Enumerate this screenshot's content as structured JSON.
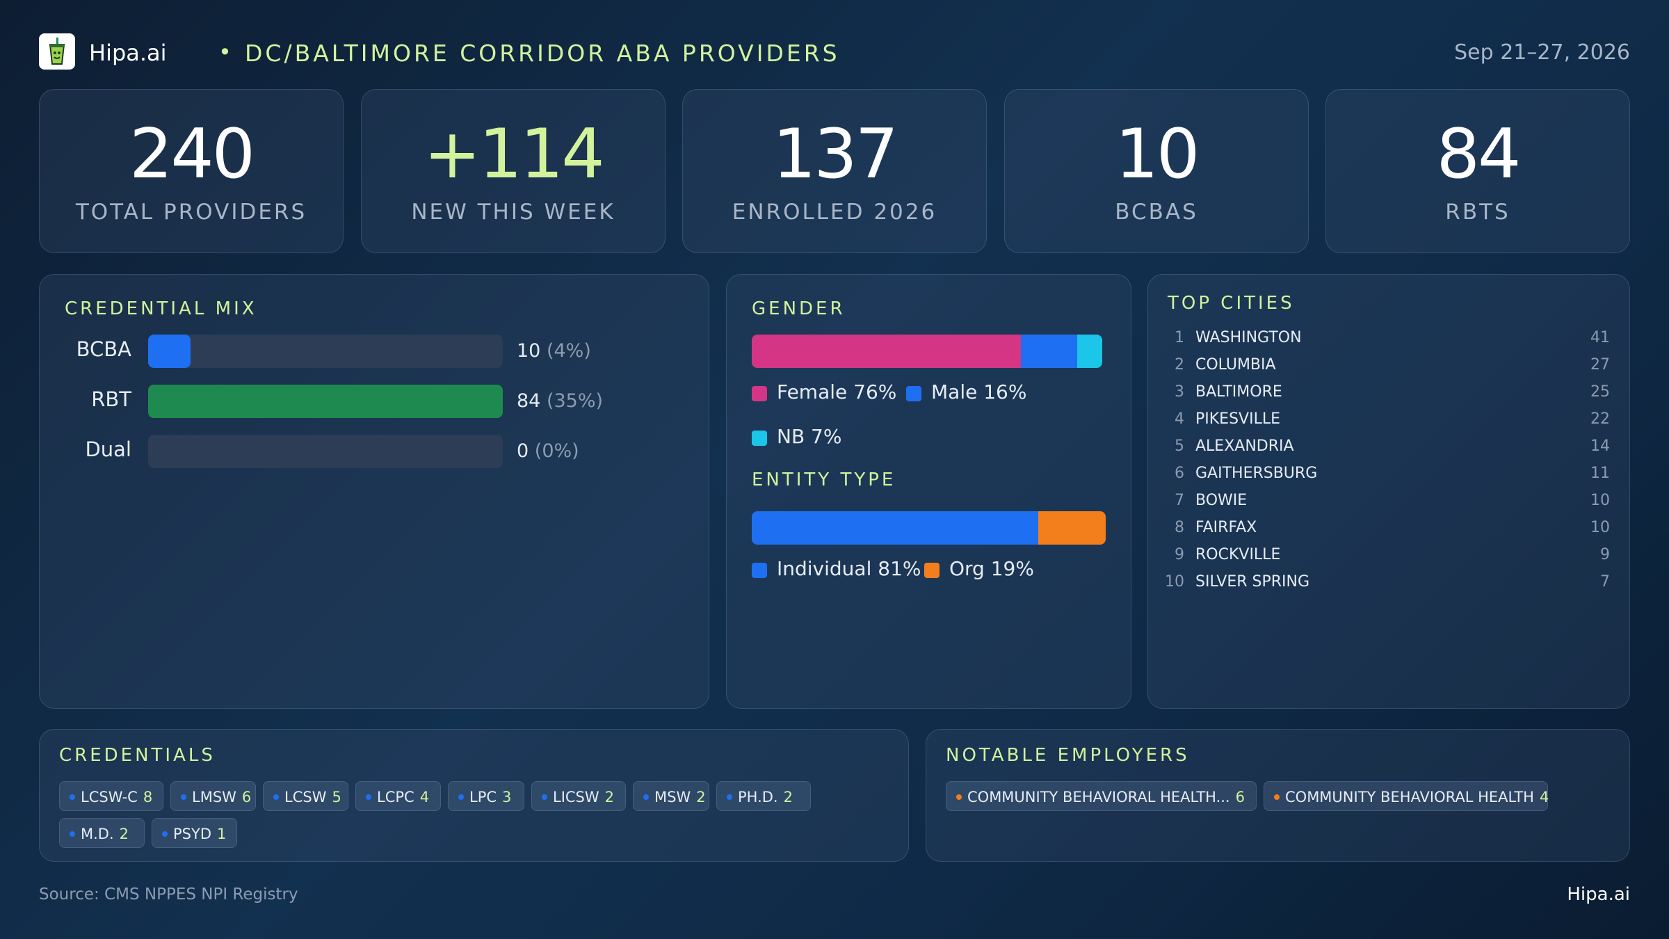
{
  "header": {
    "brand": "Hipa.ai",
    "separator": "•",
    "headline": "DC/BALTIMORE CORRIDOR ABA PROVIDERS",
    "date_range": "Sep 21–27, 2026",
    "logo_icon": "cup-icon"
  },
  "kpis": [
    {
      "value": "240",
      "label": "TOTAL PROVIDERS"
    },
    {
      "value": "+114",
      "label": "NEW THIS WEEK"
    },
    {
      "value": "137",
      "label": "ENROLLED 2026"
    },
    {
      "value": "10",
      "label": "BCBAS"
    },
    {
      "value": "84",
      "label": "RBTS"
    }
  ],
  "credential_mix": {
    "title": "CREDENTIAL MIX",
    "rows": [
      {
        "label": "BCBA",
        "count": "10",
        "pct": "(4%)",
        "fraction": 0.12,
        "color": "#1f6ff2"
      },
      {
        "label": "RBT",
        "count": "84",
        "pct": "(35%)",
        "fraction": 1.0,
        "color": "#1e8a4f"
      },
      {
        "label": "Dual",
        "count": "0",
        "pct": "(0%)",
        "fraction": 0.0,
        "color": "#1f6ff2"
      }
    ]
  },
  "gender": {
    "title": "GENDER",
    "segments": [
      {
        "label": "Female 76%",
        "share": 76,
        "color": "#d43585"
      },
      {
        "label": "Male 16%",
        "share": 16,
        "color": "#1f6ff2"
      },
      {
        "label": "NB 7%",
        "share": 7,
        "color": "#1bc6e8"
      }
    ]
  },
  "entity_type": {
    "title": "ENTITY TYPE",
    "segments": [
      {
        "label": "Individual 81%",
        "share": 81,
        "color": "#1f6ff2"
      },
      {
        "label": "Org 19%",
        "share": 19,
        "color": "#f27f1b"
      }
    ]
  },
  "top_cities": {
    "title": "TOP CITIES",
    "rows": [
      {
        "rank": "1",
        "name": "WASHINGTON",
        "count": "41"
      },
      {
        "rank": "2",
        "name": "COLUMBIA",
        "count": "27"
      },
      {
        "rank": "3",
        "name": "BALTIMORE",
        "count": "25"
      },
      {
        "rank": "4",
        "name": "PIKESVILLE",
        "count": "22"
      },
      {
        "rank": "5",
        "name": "ALEXANDRIA",
        "count": "14"
      },
      {
        "rank": "6",
        "name": "GAITHERSBURG",
        "count": "11"
      },
      {
        "rank": "7",
        "name": "BOWIE",
        "count": "10"
      },
      {
        "rank": "8",
        "name": "FAIRFAX",
        "count": "10"
      },
      {
        "rank": "9",
        "name": "ROCKVILLE",
        "count": "9"
      },
      {
        "rank": "10",
        "name": "SILVER SPRING",
        "count": "7"
      }
    ]
  },
  "credentials": {
    "title": "CREDENTIALS",
    "dot_color": "#1f6ff2",
    "chips": [
      {
        "label": "LCSW-C",
        "count": "8"
      },
      {
        "label": "LMSW",
        "count": "6"
      },
      {
        "label": "LCSW",
        "count": "5"
      },
      {
        "label": "LCPC",
        "count": "4"
      },
      {
        "label": "LPC",
        "count": "3"
      },
      {
        "label": "LICSW",
        "count": "2"
      },
      {
        "label": "MSW",
        "count": "2"
      },
      {
        "label": "PH.D.",
        "count": "2"
      },
      {
        "label": "M.D.",
        "count": "2"
      },
      {
        "label": "PSYD",
        "count": "1"
      }
    ]
  },
  "employers": {
    "title": "NOTABLE EMPLOYERS",
    "dot_color": "#f27f1b",
    "chips": [
      {
        "label": "COMMUNITY BEHAVIORAL HEALTH...",
        "count": "6"
      },
      {
        "label": "COMMUNITY BEHAVIORAL HEALTH",
        "count": "4"
      }
    ]
  },
  "footer": {
    "source": "Source: CMS NPPES NPI Registry",
    "brand": "Hipa.ai"
  }
}
